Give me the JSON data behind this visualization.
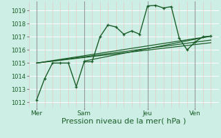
{
  "xlabel": "Pression niveau de la mer( hPa )",
  "bg_color": "#cceee4",
  "line_color": "#1a5c28",
  "yticks": [
    1012,
    1013,
    1014,
    1015,
    1016,
    1017,
    1018,
    1019
  ],
  "ylim": [
    1011.6,
    1019.7
  ],
  "xtick_labels": [
    "Mer",
    "Sam",
    "Jeu",
    "Ven"
  ],
  "xtick_positions": [
    0.5,
    3.5,
    7.5,
    10.5
  ],
  "vline_positions": [
    0.5,
    3.5,
    7.5,
    10.5
  ],
  "xlim": [
    0,
    12
  ],
  "series1_x": [
    0.5,
    1.0,
    1.5,
    2.0,
    2.5,
    3.0,
    3.5,
    4.0,
    4.5,
    5.0,
    5.5,
    6.0,
    6.5,
    7.0,
    7.5,
    8.0,
    8.5,
    9.0,
    9.5,
    10.0,
    10.5,
    11.0,
    11.5
  ],
  "series1_y": [
    1012.2,
    1013.8,
    1015.0,
    1015.0,
    1015.0,
    1013.2,
    1015.1,
    1015.1,
    1017.0,
    1017.9,
    1017.75,
    1017.2,
    1017.45,
    1017.2,
    1019.35,
    1019.4,
    1019.2,
    1019.3,
    1016.9,
    1016.0,
    1016.6,
    1017.0,
    1017.05
  ],
  "trend_lines": [
    {
      "x": [
        0.5,
        11.5
      ],
      "y": [
        1015.0,
        1017.05
      ]
    },
    {
      "x": [
        0.5,
        11.5
      ],
      "y": [
        1015.0,
        1016.55
      ]
    },
    {
      "x": [
        0.5,
        11.5
      ],
      "y": [
        1015.0,
        1016.75
      ]
    },
    {
      "x": [
        3.5,
        11.5
      ],
      "y": [
        1015.15,
        1017.05
      ]
    }
  ],
  "hgrid_color": "#ffffff",
  "vgrid_minor_color": "#e8c8c8",
  "vgrid_major_color": "#999999",
  "xlabel_color": "#1a5c28",
  "tick_color": "#1a5c28",
  "xlabel_fontsize": 8,
  "tick_fontsize": 6
}
